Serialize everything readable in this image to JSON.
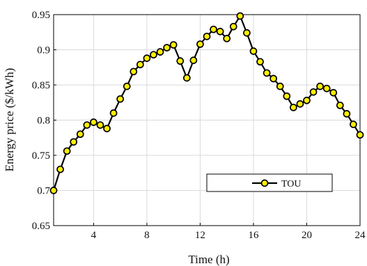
{
  "chart_data": {
    "type": "line",
    "title": "",
    "xlabel": "Time (h)",
    "ylabel": "Energy price ($/kWh)",
    "xlim": [
      1,
      24
    ],
    "ylim": [
      0.65,
      0.95
    ],
    "xticks": [
      4,
      8,
      12,
      16,
      20,
      24
    ],
    "yticks": [
      0.65,
      0.7,
      0.75,
      0.8,
      0.85,
      0.9,
      0.95
    ],
    "xtick_labels": [
      "4",
      "8",
      "12",
      "16",
      "20",
      "24"
    ],
    "ytick_labels": [
      "0.65",
      "0.7",
      "0.75",
      "0.8",
      "0.85",
      "0.9",
      "0.95"
    ],
    "grid": true,
    "legend_position": "lower-right",
    "series": [
      {
        "name": "TOU",
        "line_color": "#000000",
        "marker_fill": "#ffee00",
        "marker_edge": "#000000",
        "x": [
          1,
          1.5,
          2,
          2.5,
          3,
          3.5,
          4,
          4.5,
          5,
          5.5,
          6,
          6.5,
          7,
          7.5,
          8,
          8.5,
          9,
          9.5,
          10,
          10.5,
          11,
          11.5,
          12,
          12.5,
          13,
          13.5,
          14,
          14.5,
          15,
          15.5,
          16,
          16.5,
          17,
          17.5,
          18,
          18.5,
          19,
          19.5,
          20,
          20.5,
          21,
          21.5,
          22,
          22.5,
          23,
          23.5,
          24
        ],
        "y": [
          0.7,
          0.73,
          0.756,
          0.769,
          0.78,
          0.793,
          0.797,
          0.793,
          0.788,
          0.81,
          0.83,
          0.848,
          0.869,
          0.879,
          0.888,
          0.893,
          0.897,
          0.903,
          0.907,
          0.884,
          0.86,
          0.885,
          0.908,
          0.919,
          0.929,
          0.926,
          0.916,
          0.933,
          0.948,
          0.924,
          0.898,
          0.883,
          0.867,
          0.859,
          0.848,
          0.834,
          0.818,
          0.823,
          0.828,
          0.84,
          0.848,
          0.845,
          0.839,
          0.821,
          0.809,
          0.794,
          0.779
        ]
      }
    ]
  }
}
